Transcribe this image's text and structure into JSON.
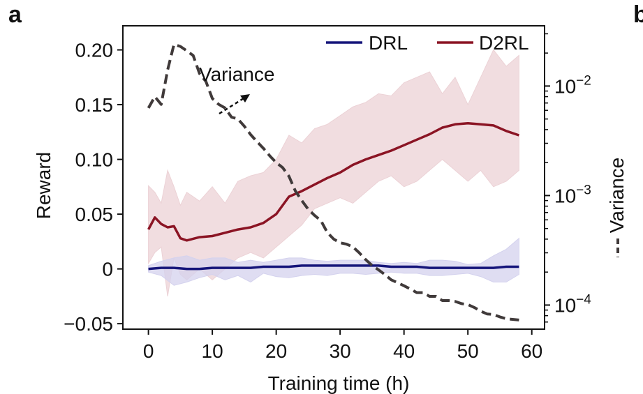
{
  "panel_label": "a",
  "edge_label": "b",
  "chart_data": {
    "type": "line",
    "title": "",
    "xlabel": "Training time (h)",
    "ylabel": "Reward",
    "y2label": "Variance",
    "xlim": [
      -4,
      62
    ],
    "ylim": [
      -0.055,
      0.222
    ],
    "y2lim_log10": [
      -4.22,
      -1.45
    ],
    "x_ticks": [
      0,
      10,
      20,
      30,
      40,
      50,
      60
    ],
    "x_tick_labels": [
      "0",
      "10",
      "20",
      "30",
      "40",
      "50",
      "60"
    ],
    "y_ticks": [
      -0.05,
      0,
      0.05,
      0.1,
      0.15,
      0.2
    ],
    "y_tick_labels": [
      "−0.05",
      "0",
      "0.05",
      "0.10",
      "0.15",
      "0.20"
    ],
    "y2_ticks_log10": [
      -2,
      -3,
      -4
    ],
    "y2_tick_labels": [
      "10−2",
      "10−3",
      "10−4"
    ],
    "grid": false,
    "legend_position": "top-right",
    "annotation": "Variance",
    "colors": {
      "DRL": "#15157a",
      "D2RL": "#8b1424",
      "Variance": "#403a3a",
      "D2RL_band": "#ecd2d6",
      "DRL_band": "#d4d2ee"
    },
    "series": [
      {
        "name": "DRL",
        "x": [
          0,
          2,
          4,
          6,
          8,
          10,
          12,
          14,
          16,
          18,
          20,
          22,
          24,
          26,
          28,
          30,
          32,
          34,
          36,
          38,
          40,
          42,
          44,
          46,
          48,
          50,
          52,
          54,
          56,
          58
        ],
        "y": [
          0.0,
          0.001,
          0.001,
          0.0,
          0.0,
          0.001,
          0.001,
          0.001,
          0.001,
          0.002,
          0.002,
          0.002,
          0.003,
          0.003,
          0.003,
          0.003,
          0.003,
          0.003,
          0.003,
          0.002,
          0.002,
          0.002,
          0.001,
          0.001,
          0.001,
          0.001,
          0.001,
          0.001,
          0.002,
          0.002
        ],
        "upper": [
          0.003,
          0.007,
          0.01,
          0.012,
          0.008,
          0.01,
          0.01,
          0.006,
          0.008,
          0.006,
          0.008,
          0.01,
          0.01,
          0.008,
          0.007,
          0.008,
          0.008,
          0.008,
          0.006,
          0.005,
          0.006,
          0.005,
          0.008,
          0.008,
          0.007,
          0.004,
          0.005,
          0.012,
          0.018,
          0.028
        ],
        "lower": [
          -0.003,
          -0.006,
          -0.015,
          -0.012,
          -0.008,
          -0.005,
          -0.01,
          -0.006,
          -0.012,
          -0.004,
          -0.007,
          -0.008,
          -0.006,
          -0.005,
          -0.006,
          -0.004,
          -0.004,
          -0.005,
          -0.004,
          -0.003,
          -0.004,
          -0.004,
          -0.006,
          -0.006,
          -0.005,
          -0.004,
          -0.007,
          -0.012,
          -0.012,
          -0.005
        ]
      },
      {
        "name": "D2RL",
        "x": [
          0,
          1,
          2,
          3,
          4,
          5,
          6,
          8,
          10,
          12,
          14,
          16,
          18,
          20,
          22,
          24,
          26,
          28,
          30,
          32,
          34,
          36,
          38,
          40,
          42,
          44,
          46,
          48,
          50,
          52,
          54,
          56,
          58
        ],
        "y": [
          0.036,
          0.047,
          0.041,
          0.038,
          0.039,
          0.028,
          0.026,
          0.029,
          0.03,
          0.033,
          0.036,
          0.038,
          0.042,
          0.05,
          0.066,
          0.071,
          0.077,
          0.083,
          0.088,
          0.095,
          0.1,
          0.104,
          0.108,
          0.113,
          0.118,
          0.123,
          0.129,
          0.132,
          0.133,
          0.132,
          0.131,
          0.126,
          0.122
        ],
        "upper": [
          0.076,
          0.07,
          0.06,
          0.09,
          0.075,
          0.058,
          0.07,
          0.062,
          0.075,
          0.06,
          0.08,
          0.085,
          0.088,
          0.1,
          0.122,
          0.115,
          0.128,
          0.132,
          0.14,
          0.148,
          0.152,
          0.16,
          0.158,
          0.17,
          0.175,
          0.18,
          0.16,
          0.175,
          0.15,
          0.175,
          0.2,
          0.185,
          0.195
        ],
        "lower": [
          0.005,
          0.015,
          0.02,
          -0.025,
          0.01,
          -0.005,
          -0.01,
          0.0,
          -0.01,
          0.0,
          0.01,
          0.015,
          0.01,
          0.02,
          0.03,
          0.04,
          0.055,
          0.06,
          0.065,
          0.06,
          0.07,
          0.08,
          0.085,
          0.075,
          0.08,
          0.09,
          0.1,
          0.09,
          0.08,
          0.09,
          0.075,
          0.08,
          0.09
        ]
      },
      {
        "name": "Variance",
        "axis": "right",
        "x": [
          0,
          1,
          2,
          3,
          4,
          5,
          6,
          7,
          8,
          9,
          10,
          11,
          12,
          13,
          14,
          15,
          16,
          17,
          18,
          19,
          20,
          21,
          22,
          23,
          24,
          25,
          26,
          27,
          28,
          29,
          30,
          31,
          32,
          33,
          34,
          35,
          36,
          37,
          38,
          39,
          40,
          41,
          42,
          43,
          44,
          45,
          46,
          47,
          48,
          49,
          50,
          51,
          52,
          53,
          54,
          55,
          56,
          57,
          58
        ],
        "y": [
          0.0063,
          0.008,
          0.0068,
          0.014,
          0.024,
          0.023,
          0.021,
          0.019,
          0.013,
          0.011,
          0.0077,
          0.0068,
          0.0063,
          0.0052,
          0.005,
          0.0043,
          0.0036,
          0.0031,
          0.0027,
          0.0023,
          0.002,
          0.0018,
          0.0015,
          0.0011,
          0.0009,
          0.00075,
          0.00066,
          0.00059,
          0.00046,
          0.0004,
          0.00037,
          0.00036,
          0.00034,
          0.0003,
          0.00026,
          0.00023,
          0.00021,
          0.00019,
          0.00017,
          0.00016,
          0.00015,
          0.00014,
          0.00013,
          0.00013,
          0.00012,
          0.00012,
          0.00011,
          0.00011,
          0.000108,
          0.000103,
          0.000101,
          9.5e-05,
          8.8e-05,
          8.3e-05,
          8.2e-05,
          7.8e-05,
          7.5e-05,
          7.4e-05,
          7.3e-05
        ]
      }
    ]
  }
}
